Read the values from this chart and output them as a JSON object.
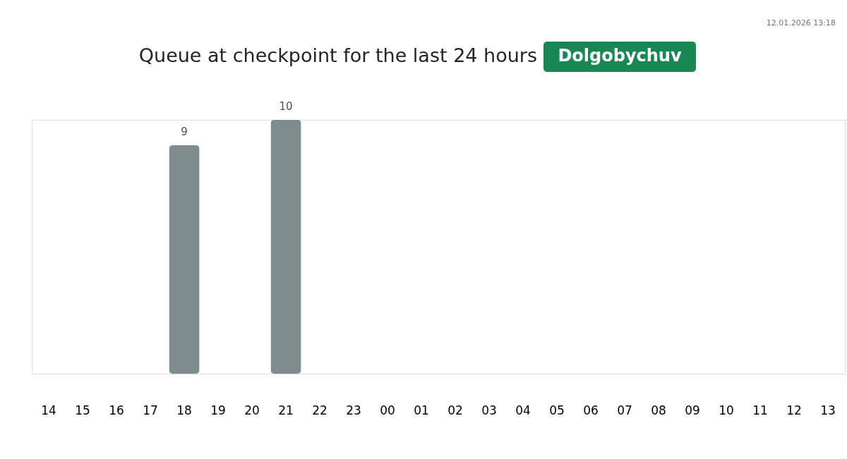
{
  "chart_data": {
    "type": "bar",
    "title": "Queue at checkpoint for the last 24 hours",
    "subtitle": "Dolgobychuv",
    "annotations": [
      "12.01.2026 13:18"
    ],
    "categories": [
      "14",
      "15",
      "16",
      "17",
      "18",
      "19",
      "20",
      "21",
      "22",
      "23",
      "00",
      "01",
      "02",
      "03",
      "04",
      "05",
      "06",
      "07",
      "08",
      "09",
      "10",
      "11",
      "12",
      "13"
    ],
    "values": [
      null,
      null,
      null,
      null,
      9,
      null,
      null,
      10,
      null,
      null,
      null,
      null,
      null,
      null,
      null,
      null,
      null,
      null,
      null,
      null,
      null,
      null,
      null,
      null
    ],
    "color": "#7f8c8d",
    "ylim": [
      0,
      10
    ],
    "data_labels": true,
    "tick_labels": "x"
  }
}
